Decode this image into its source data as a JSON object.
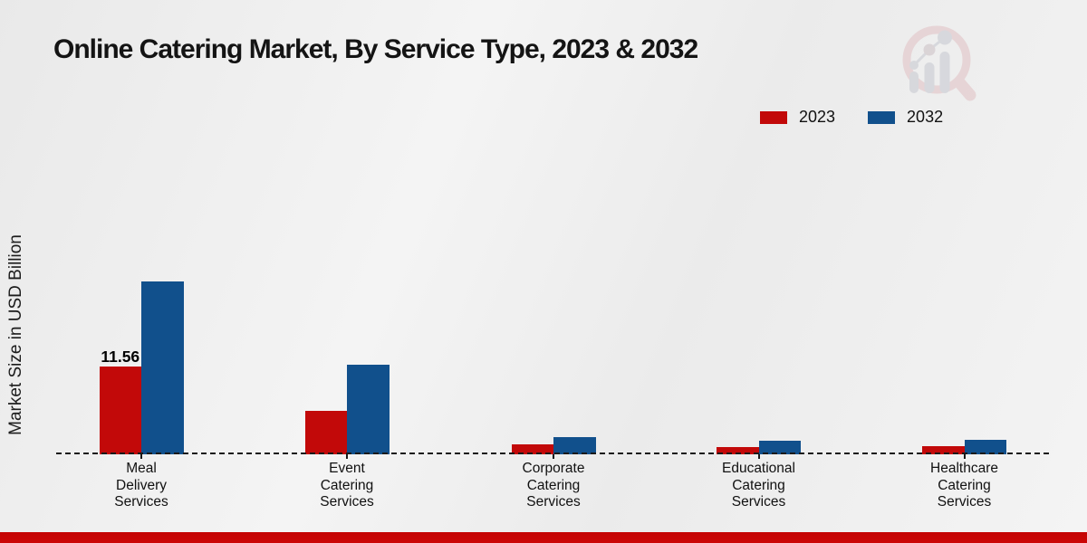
{
  "chart_data": {
    "type": "bar",
    "title": "Online Catering Market, By Service Type, 2023 & 2032",
    "ylabel": "Market Size in USD Billion",
    "xlabel": "",
    "categories": [
      "Meal Delivery Services",
      "Event Catering Services",
      "Corporate Catering Services",
      "Educational Catering Services",
      "Healthcare Catering Services"
    ],
    "series": [
      {
        "name": "2023",
        "color": "#c20909",
        "values": [
          11.56,
          5.7,
          1.3,
          0.95,
          1.05
        ]
      },
      {
        "name": "2032",
        "color": "#11508c",
        "values": [
          22.75,
          11.75,
          2.25,
          1.8,
          1.95
        ]
      }
    ],
    "data_labels": [
      {
        "series": "2023",
        "category_index": 0,
        "text": "11.56"
      }
    ],
    "ylim": [
      0,
      25
    ],
    "grid": false,
    "legend_position": "top-right",
    "baseline_style": "dashed"
  },
  "footer": {
    "accent_color": "#c40404"
  },
  "watermark": {
    "icon": "magnifier-bar-chart-logo"
  }
}
